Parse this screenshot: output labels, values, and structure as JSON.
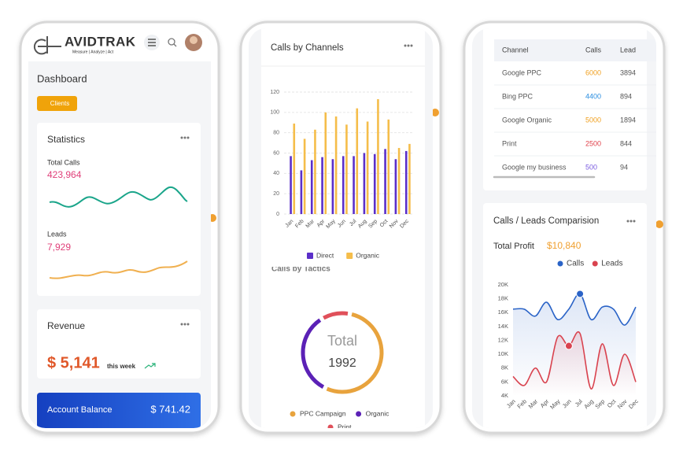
{
  "phone1": {
    "brand": "AVIDTRAK",
    "tagline": "Measure | Analyze | Act",
    "title": "Dashboard",
    "clients_button": "Clients",
    "statistics": {
      "title": "Statistics",
      "total_calls_label": "Total Calls",
      "total_calls": "423,964",
      "leads_label": "Leads",
      "leads": "7,929"
    },
    "revenue": {
      "title": "Revenue",
      "amount": "$ 5,141",
      "period": "this week"
    },
    "account_balance": {
      "label": "Account Balance",
      "amount": "$ 741.42"
    }
  },
  "phone2": {
    "calls_chart": {
      "type": "bar",
      "title": "Calls by Channels",
      "categories": [
        "Jan",
        "Feb",
        "Mar",
        "Apr",
        "May",
        "Jun",
        "Jul",
        "Aug",
        "Sep",
        "Oct",
        "Nov",
        "Dec"
      ],
      "series": [
        {
          "name": "Direct",
          "color": "#5b2fc9",
          "values": [
            57,
            43,
            53,
            56,
            54,
            57,
            57,
            60,
            59,
            64,
            54,
            62
          ]
        },
        {
          "name": "Organic",
          "color": "#f5bd4a",
          "values": [
            89,
            74,
            83,
            100,
            96,
            88,
            104,
            91,
            113,
            93,
            65,
            69
          ]
        }
      ],
      "ylim": [
        0,
        120
      ],
      "yticks": [
        0,
        20,
        40,
        60,
        80,
        100,
        120
      ],
      "grid": true,
      "legend": "bottom"
    },
    "tactics_chart": {
      "type": "pie",
      "title": "Calls by Tactics",
      "center_label": "Total",
      "total": 1992,
      "categories": [
        "PPC Campaign",
        "Organic",
        "Print"
      ],
      "values": [
        1100,
        680,
        212
      ],
      "colors": [
        "#e8a33d",
        "#5b21b6",
        "#e0505a"
      ]
    }
  },
  "phone3": {
    "table": {
      "columns": [
        "Channel",
        "Calls",
        "Lead"
      ],
      "rows": [
        [
          "Google PPC",
          6000,
          3894
        ],
        [
          "Bing PPC",
          4400,
          894
        ],
        [
          "Google Organic",
          5000,
          1894
        ],
        [
          "Print",
          2500,
          844
        ],
        [
          "Google my business",
          500,
          94
        ]
      ],
      "call_colors": [
        "#f0a020",
        "#2a8ee0",
        "#f0a020",
        "#e0404a",
        "#7b5ce0"
      ]
    },
    "comparison_chart": {
      "type": "line",
      "title": "Calls / Leads Comparision",
      "profit_label": "Total Profit",
      "profit": "$10,840",
      "categories": [
        "Jan",
        "Feb",
        "Mar",
        "Apr",
        "May",
        "Jun",
        "Jul",
        "Aug",
        "Sep",
        "Oct",
        "Nov",
        "Dec"
      ],
      "series": [
        {
          "name": "Calls",
          "color": "#2a63c7",
          "values": [
            16500,
            16500,
            15500,
            17500,
            15000,
            16500,
            18700,
            15000,
            16800,
            16500,
            14200,
            16800
          ]
        },
        {
          "name": "Leads",
          "color": "#d9434f",
          "values": [
            6800,
            5500,
            8000,
            6000,
            12500,
            11200,
            13000,
            5000,
            11500,
            5500,
            10000,
            6000
          ]
        }
      ],
      "ylim": [
        4000,
        20000
      ],
      "yticks": [
        {
          "value": 4000,
          "label": "4K"
        },
        {
          "value": 6000,
          "label": "6K"
        },
        {
          "value": 8000,
          "label": "8K"
        },
        {
          "value": 10000,
          "label": "10K"
        },
        {
          "value": 12000,
          "label": "12K"
        },
        {
          "value": 14000,
          "label": "14K"
        },
        {
          "value": 16000,
          "label": "16K"
        },
        {
          "value": 18000,
          "label": "18K"
        },
        {
          "value": 20000,
          "label": "20K"
        }
      ],
      "highlight": [
        {
          "series": 0,
          "index": 6
        },
        {
          "series": 1,
          "index": 5
        }
      ],
      "legend": "top"
    }
  }
}
